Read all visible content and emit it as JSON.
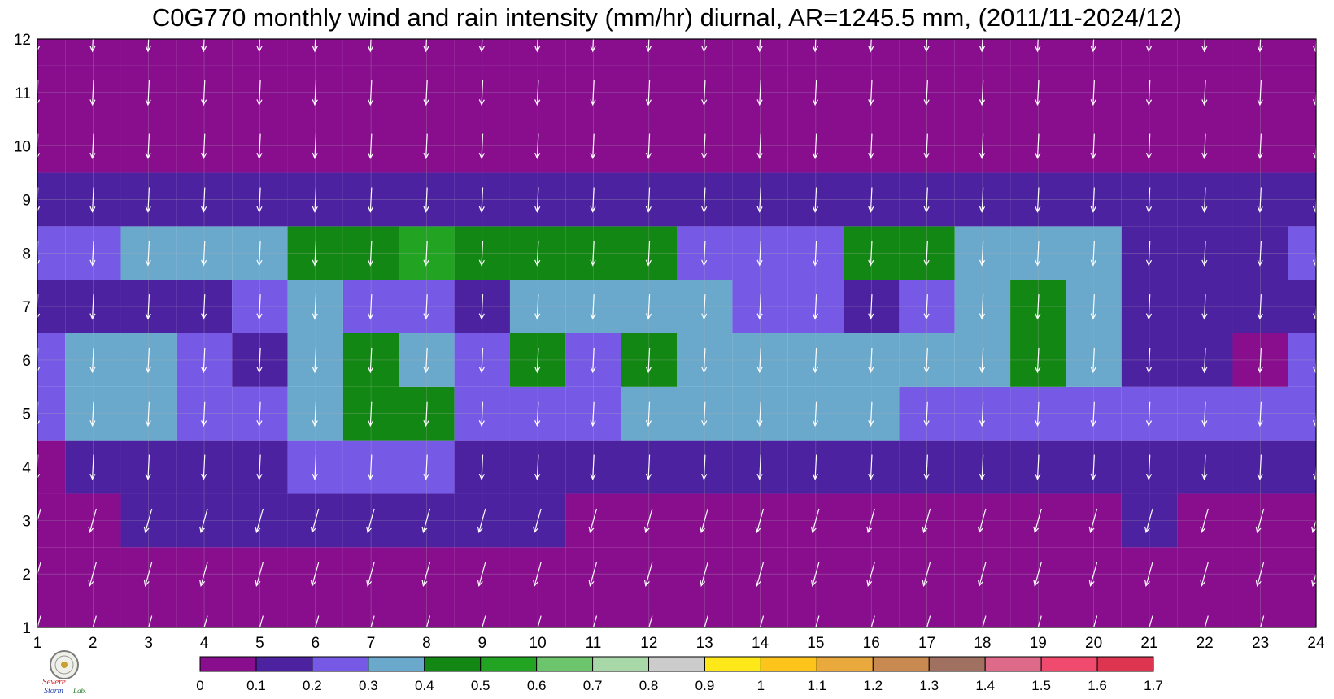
{
  "chart_data": {
    "type": "heatmap",
    "title": "C0G770 monthly wind and rain intensity (mm/hr) diurnal, AR=1245.5 mm, (2011/11-2024/12)",
    "x_ticks": [
      "1",
      "2",
      "3",
      "4",
      "5",
      "6",
      "7",
      "8",
      "9",
      "10",
      "11",
      "12",
      "13",
      "14",
      "15",
      "16",
      "17",
      "18",
      "19",
      "20",
      "21",
      "22",
      "23",
      "24"
    ],
    "y_ticks": [
      "1",
      "2",
      "3",
      "4",
      "5",
      "6",
      "7",
      "8",
      "9",
      "10",
      "11",
      "12"
    ],
    "xlim": [
      1,
      24
    ],
    "ylim": [
      1,
      12
    ],
    "colorbar": {
      "levels": [
        "0",
        "0.1",
        "0.2",
        "0.3",
        "0.4",
        "0.5",
        "0.6",
        "0.7",
        "0.8",
        "0.9",
        "1",
        "1.1",
        "1.2",
        "1.3",
        "1.4",
        "1.5",
        "1.6",
        "1.7"
      ],
      "colors": [
        "#880e8e",
        "#4c22a0",
        "#765ae6",
        "#6aa9cc",
        "#138713",
        "#22a322",
        "#6cc46c",
        "#a8d8a8",
        "#cccccc",
        "#ffe81a",
        "#fdc41c",
        "#e9a93c",
        "#c88a50",
        "#a07060",
        "#dc6a88",
        "#f04a6e",
        "#dd3550"
      ]
    },
    "rain_intensity_contour_levels": [
      0.1,
      0.2,
      0.3,
      0.4,
      0.5
    ],
    "rain_intensity_grid": [
      [
        0.05,
        0.05,
        0.05,
        0.05,
        0.05,
        0.05,
        0.05,
        0.05,
        0.05,
        0.05,
        0.05,
        0.05,
        0.05,
        0.05,
        0.05,
        0.05,
        0.05,
        0.05,
        0.05,
        0.05,
        0.05,
        0.05,
        0.05,
        0.05
      ],
      [
        0.05,
        0.05,
        0.05,
        0.05,
        0.05,
        0.05,
        0.05,
        0.05,
        0.05,
        0.05,
        0.05,
        0.05,
        0.05,
        0.05,
        0.05,
        0.05,
        0.05,
        0.05,
        0.05,
        0.05,
        0.05,
        0.05,
        0.05,
        0.05
      ],
      [
        0.05,
        0.08,
        0.12,
        0.12,
        0.1,
        0.12,
        0.12,
        0.1,
        0.1,
        0.1,
        0.06,
        0.06,
        0.06,
        0.06,
        0.06,
        0.06,
        0.06,
        0.06,
        0.06,
        0.06,
        0.12,
        0.06,
        0.06,
        0.06
      ],
      [
        0.06,
        0.15,
        0.15,
        0.15,
        0.15,
        0.23,
        0.23,
        0.21,
        0.15,
        0.15,
        0.15,
        0.15,
        0.15,
        0.15,
        0.15,
        0.15,
        0.15,
        0.15,
        0.15,
        0.15,
        0.15,
        0.15,
        0.15,
        0.12
      ],
      [
        0.25,
        0.35,
        0.35,
        0.25,
        0.25,
        0.35,
        0.45,
        0.45,
        0.25,
        0.25,
        0.25,
        0.35,
        0.35,
        0.35,
        0.35,
        0.35,
        0.25,
        0.25,
        0.25,
        0.25,
        0.25,
        0.25,
        0.25,
        0.25
      ],
      [
        0.25,
        0.35,
        0.35,
        0.25,
        0.15,
        0.35,
        0.45,
        0.35,
        0.25,
        0.45,
        0.25,
        0.45,
        0.35,
        0.35,
        0.35,
        0.35,
        0.35,
        0.35,
        0.45,
        0.35,
        0.15,
        0.15,
        0.05,
        0.25
      ],
      [
        0.15,
        0.15,
        0.15,
        0.15,
        0.25,
        0.35,
        0.25,
        0.25,
        0.15,
        0.35,
        0.35,
        0.35,
        0.35,
        0.25,
        0.25,
        0.15,
        0.25,
        0.35,
        0.45,
        0.35,
        0.15,
        0.15,
        0.15,
        0.15
      ],
      [
        0.25,
        0.25,
        0.35,
        0.35,
        0.35,
        0.45,
        0.45,
        0.55,
        0.45,
        0.45,
        0.45,
        0.45,
        0.25,
        0.25,
        0.25,
        0.45,
        0.45,
        0.35,
        0.35,
        0.35,
        0.15,
        0.15,
        0.15,
        0.25
      ],
      [
        0.15,
        0.15,
        0.15,
        0.15,
        0.15,
        0.15,
        0.15,
        0.15,
        0.15,
        0.15,
        0.15,
        0.15,
        0.15,
        0.15,
        0.15,
        0.15,
        0.15,
        0.15,
        0.15,
        0.15,
        0.15,
        0.15,
        0.15,
        0.15
      ],
      [
        0.05,
        0.05,
        0.05,
        0.05,
        0.05,
        0.05,
        0.05,
        0.05,
        0.05,
        0.05,
        0.05,
        0.05,
        0.05,
        0.05,
        0.05,
        0.05,
        0.05,
        0.05,
        0.05,
        0.05,
        0.05,
        0.05,
        0.05,
        0.05
      ],
      [
        0.05,
        0.05,
        0.05,
        0.05,
        0.05,
        0.05,
        0.05,
        0.05,
        0.05,
        0.05,
        0.05,
        0.05,
        0.05,
        0.05,
        0.05,
        0.05,
        0.05,
        0.05,
        0.05,
        0.05,
        0.05,
        0.05,
        0.05,
        0.05
      ],
      [
        0.05,
        0.05,
        0.05,
        0.05,
        0.05,
        0.05,
        0.05,
        0.05,
        0.05,
        0.05,
        0.05,
        0.05,
        0.05,
        0.05,
        0.05,
        0.05,
        0.05,
        0.05,
        0.05,
        0.05,
        0.05,
        0.05,
        0.05,
        0.05
      ]
    ],
    "wind_vector_rows": [
      {
        "months": [
          1,
          2,
          3
        ],
        "u": -0.25,
        "v": -0.9
      },
      {
        "months": [
          4,
          5,
          6,
          7,
          8,
          9,
          10,
          11,
          12,
          13,
          14,
          15,
          16,
          17,
          18,
          19,
          20,
          21,
          22,
          23,
          24
        ],
        "u": -0.05,
        "v": -1.0
      }
    ],
    "wind_vector_columns_hours": [
      1,
      2,
      3,
      4,
      5,
      6,
      7,
      8,
      9,
      10,
      11,
      12,
      13,
      14,
      15,
      16,
      17,
      18,
      19,
      20,
      21,
      22,
      23,
      24
    ]
  },
  "logo": {
    "text_top": "Severe",
    "text_bottom": "Storm",
    "text_lab": "Lab."
  }
}
